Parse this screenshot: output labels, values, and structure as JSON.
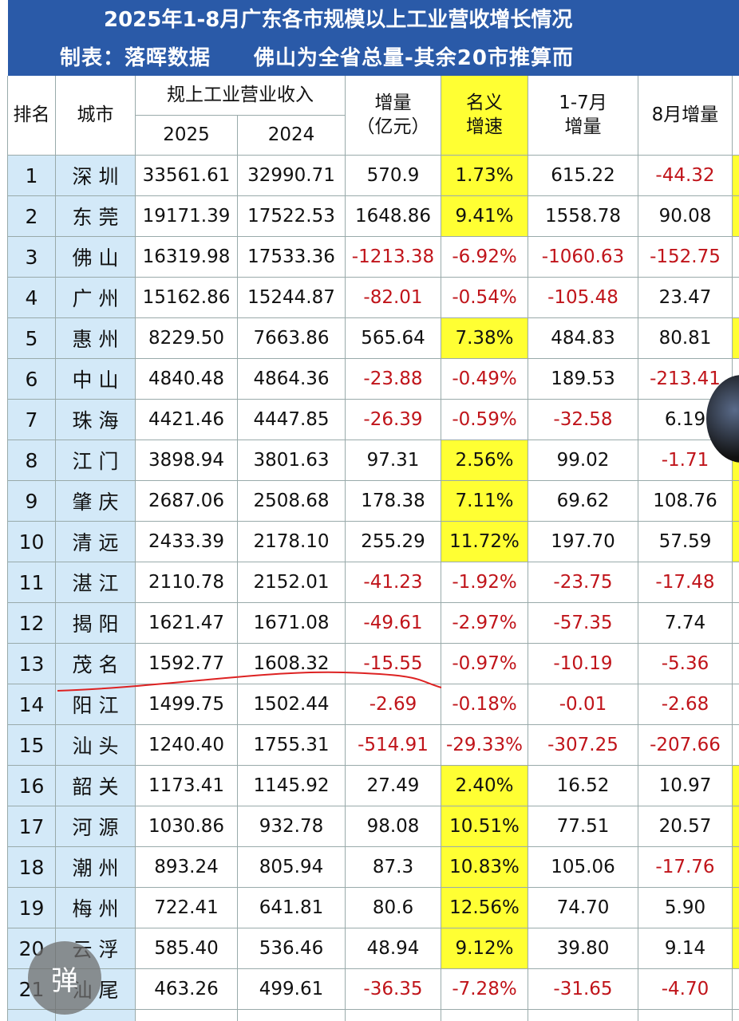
{
  "header": {
    "title": "2025年1-8月广东各市规模以上工业营收增长情况",
    "subtitle": "制表：落晖数据　　佛山为全省总量-其余20市推算而"
  },
  "table": {
    "headers": {
      "rank": "排名",
      "city": "城市",
      "revenue": "规上工业营业收入",
      "y2025": "2025",
      "y2024": "2024",
      "delta": [
        "增量",
        "（亿元）"
      ],
      "growth": [
        "名义",
        "增速"
      ],
      "delta_1_7": [
        "1-7月",
        "增量"
      ],
      "delta_8": "8月增量"
    },
    "rows": [
      [
        "1",
        "深圳",
        "33561.61",
        "32990.71",
        "570.9",
        "1.73%",
        "615.22",
        "-44.32"
      ],
      [
        "2",
        "东莞",
        "19171.39",
        "17522.53",
        "1648.86",
        "9.41%",
        "1558.78",
        "90.08"
      ],
      [
        "3",
        "佛山",
        "16319.98",
        "17533.36",
        "-1213.38",
        "-6.92%",
        "-1060.63",
        "-152.75"
      ],
      [
        "4",
        "广州",
        "15162.86",
        "15244.87",
        "-82.01",
        "-0.54%",
        "-105.48",
        "23.47"
      ],
      [
        "5",
        "惠州",
        "8229.50",
        "7663.86",
        "565.64",
        "7.38%",
        "484.83",
        "80.81"
      ],
      [
        "6",
        "中山",
        "4840.48",
        "4864.36",
        "-23.88",
        "-0.49%",
        "189.53",
        "-213.41"
      ],
      [
        "7",
        "珠海",
        "4421.46",
        "4447.85",
        "-26.39",
        "-0.59%",
        "-32.58",
        "6.19"
      ],
      [
        "8",
        "江门",
        "3898.94",
        "3801.63",
        "97.31",
        "2.56%",
        "99.02",
        "-1.71"
      ],
      [
        "9",
        "肇庆",
        "2687.06",
        "2508.68",
        "178.38",
        "7.11%",
        "69.62",
        "108.76"
      ],
      [
        "10",
        "清远",
        "2433.39",
        "2178.10",
        "255.29",
        "11.72%",
        "197.70",
        "57.59"
      ],
      [
        "11",
        "湛江",
        "2110.78",
        "2152.01",
        "-41.23",
        "-1.92%",
        "-23.75",
        "-17.48"
      ],
      [
        "12",
        "揭阳",
        "1621.47",
        "1671.08",
        "-49.61",
        "-2.97%",
        "-57.35",
        "7.74"
      ],
      [
        "13",
        "茂名",
        "1592.77",
        "1608.32",
        "-15.55",
        "-0.97%",
        "-10.19",
        "-5.36"
      ],
      [
        "14",
        "阳江",
        "1499.75",
        "1502.44",
        "-2.69",
        "-0.18%",
        "-0.01",
        "-2.68"
      ],
      [
        "15",
        "汕头",
        "1240.40",
        "1755.31",
        "-514.91",
        "-29.33%",
        "-307.25",
        "-207.66"
      ],
      [
        "16",
        "韶关",
        "1173.41",
        "1145.92",
        "27.49",
        "2.40%",
        "16.52",
        "10.97"
      ],
      [
        "17",
        "河源",
        "1030.86",
        "932.78",
        "98.08",
        "10.51%",
        "77.51",
        "20.57"
      ],
      [
        "18",
        "潮州",
        "893.24",
        "805.94",
        "87.3",
        "10.83%",
        "105.06",
        "-17.76"
      ],
      [
        "19",
        "梅州",
        "722.41",
        "641.81",
        "80.6",
        "12.56%",
        "74.70",
        "5.90"
      ],
      [
        "20",
        "云浮",
        "585.40",
        "536.46",
        "48.94",
        "9.12%",
        "39.80",
        "9.14"
      ],
      [
        "21",
        "汕尾",
        "463.26",
        "499.61",
        "-36.35",
        "-7.28%",
        "-31.65",
        "-4.70"
      ]
    ]
  },
  "overlay_button": "弹"
}
